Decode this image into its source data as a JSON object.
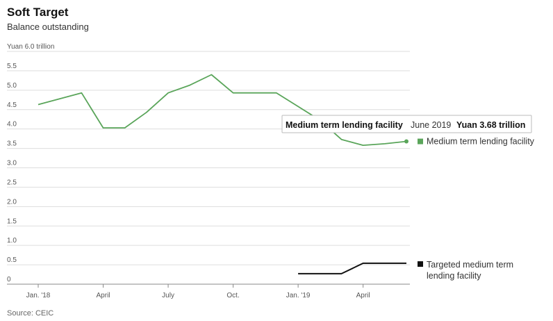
{
  "header": {
    "title": "Soft Target",
    "subtitle": "Balance outstanding"
  },
  "source": "Source: CEIC",
  "chart_data": {
    "type": "line",
    "title": "Soft Target",
    "subtitle": "Balance outstanding",
    "ylabel": "Yuan 6.0 trillion",
    "ylim": [
      0,
      6.0
    ],
    "y_ticks": [
      {
        "value": 6.0,
        "label": "Yuan 6.0 trillion"
      },
      {
        "value": 5.5,
        "label": "5.5"
      },
      {
        "value": 5.0,
        "label": "5.0"
      },
      {
        "value": 4.5,
        "label": "4.5"
      },
      {
        "value": 4.0,
        "label": "4.0"
      },
      {
        "value": 3.5,
        "label": "3.5"
      },
      {
        "value": 3.0,
        "label": "3.0"
      },
      {
        "value": 2.5,
        "label": "2.5"
      },
      {
        "value": 2.0,
        "label": "2.0"
      },
      {
        "value": 1.5,
        "label": "1.5"
      },
      {
        "value": 1.0,
        "label": "1.0"
      },
      {
        "value": 0.5,
        "label": "0.5"
      },
      {
        "value": 0,
        "label": "0"
      }
    ],
    "x_ticks": [
      {
        "date": "2018-01",
        "label": "Jan. '18"
      },
      {
        "date": "2018-04",
        "label": "April"
      },
      {
        "date": "2018-07",
        "label": "July"
      },
      {
        "date": "2018-10",
        "label": "Oct."
      },
      {
        "date": "2019-01",
        "label": "Jan. '19"
      },
      {
        "date": "2019-04",
        "label": "April"
      }
    ],
    "x_range": [
      "2018-01",
      "2019-06"
    ],
    "grid": "horizontal",
    "series": [
      {
        "name": "Medium term lending facility",
        "color": "#5aa55a",
        "points": [
          {
            "x": "2018-01",
            "y": 4.63
          },
          {
            "x": "2018-03",
            "y": 4.93
          },
          {
            "x": "2018-04",
            "y": 4.03
          },
          {
            "x": "2018-05",
            "y": 4.03
          },
          {
            "x": "2018-06",
            "y": 4.43
          },
          {
            "x": "2018-07",
            "y": 4.93
          },
          {
            "x": "2018-08",
            "y": 5.13
          },
          {
            "x": "2018-09",
            "y": 5.4
          },
          {
            "x": "2018-10",
            "y": 4.93
          },
          {
            "x": "2018-11",
            "y": 4.93
          },
          {
            "x": "2018-12",
            "y": 4.93
          },
          {
            "x": "2019-01",
            "y": 4.58
          },
          {
            "x": "2019-02",
            "y": 4.23
          },
          {
            "x": "2019-03",
            "y": 3.73
          },
          {
            "x": "2019-04",
            "y": 3.58
          },
          {
            "x": "2019-05",
            "y": 3.62
          },
          {
            "x": "2019-06",
            "y": 3.68
          }
        ]
      },
      {
        "name": "Targeted medium term lending facility",
        "name_lines": [
          "Targeted medium term",
          "lending facility"
        ],
        "color": "#111111",
        "points": [
          {
            "x": "2019-01",
            "y": 0.27
          },
          {
            "x": "2019-03",
            "y": 0.27
          },
          {
            "x": "2019-04",
            "y": 0.54
          },
          {
            "x": "2019-06",
            "y": 0.54
          }
        ]
      }
    ],
    "tooltip": {
      "series": "Medium term lending facility",
      "date": "June 2019",
      "value": "Yuan 3.68 trillion",
      "point": {
        "x": "2019-06",
        "y": 3.68
      }
    }
  }
}
